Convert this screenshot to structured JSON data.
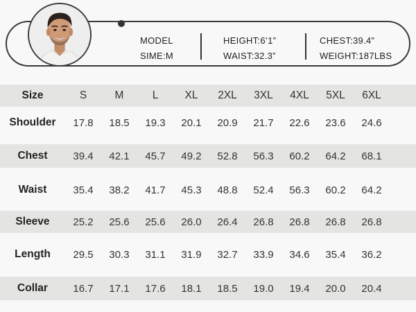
{
  "model": {
    "model_label": "MODEL",
    "size_text": "SIME:M",
    "height_text": "HEIGHT:6’1”",
    "waist_text": "WAIST:32.3”",
    "chest_text": "CHEST:39.4”",
    "weight_text": "WEIGHT:187LBS"
  },
  "table": {
    "size_header": "Size",
    "sizes": [
      "S",
      "M",
      "L",
      "XL",
      "2XL",
      "3XL",
      "4XL",
      "5XL",
      "6XL"
    ],
    "rows": [
      {
        "label": "Shoulder",
        "values": [
          "17.8",
          "18.5",
          "19.3",
          "20.1",
          "20.9",
          "21.7",
          "22.6",
          "23.6",
          "24.6"
        ]
      },
      {
        "label": "Chest",
        "values": [
          "39.4",
          "42.1",
          "45.7",
          "49.2",
          "52.8",
          "56.3",
          "60.2",
          "64.2",
          "68.1"
        ]
      },
      {
        "label": "Waist",
        "values": [
          "35.4",
          "38.2",
          "41.7",
          "45.3",
          "48.8",
          "52.4",
          "56.3",
          "60.2",
          "64.2"
        ]
      },
      {
        "label": "Sleeve",
        "values": [
          "25.2",
          "25.6",
          "25.6",
          "26.0",
          "26.4",
          "26.8",
          "26.8",
          "26.8",
          "26.8"
        ]
      },
      {
        "label": "Length",
        "values": [
          "29.5",
          "30.3",
          "31.1",
          "31.9",
          "32.7",
          "33.9",
          "34.6",
          "35.4",
          "36.2"
        ]
      },
      {
        "label": "Collar",
        "values": [
          "16.7",
          "17.1",
          "17.6",
          "18.1",
          "18.5",
          "19.0",
          "19.4",
          "20.0",
          "20.4"
        ]
      }
    ]
  },
  "colors": {
    "background": "#f8f8f8",
    "row_shade": "#e4e4e2",
    "outline": "#3a3a3a"
  }
}
